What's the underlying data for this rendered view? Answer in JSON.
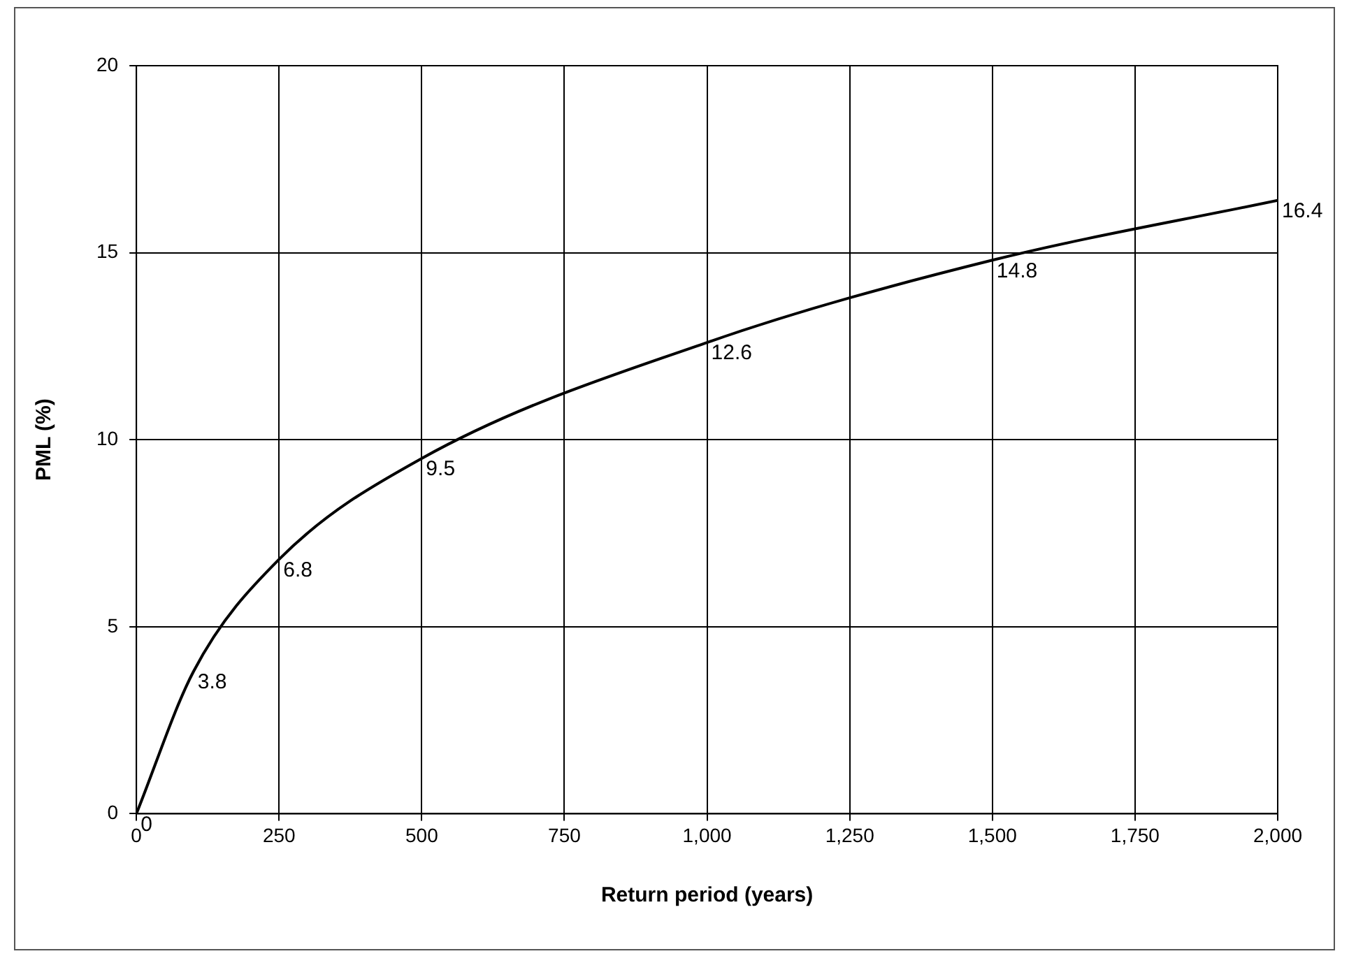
{
  "chart_data": {
    "type": "line",
    "xlabel": "Return period (years)",
    "ylabel": "PML (%)",
    "x": [
      0,
      100,
      250,
      500,
      1000,
      1500,
      2000
    ],
    "series": [
      {
        "color": "#000000",
        "values": [
          0,
          3.8,
          6.8,
          9.5,
          12.6,
          14.8,
          16.4
        ]
      }
    ],
    "xlim": [
      0,
      2000
    ],
    "xticks": [
      0,
      250,
      500,
      750,
      {
        "value": 1000,
        "label": "1,000"
      },
      {
        "value": 1250,
        "label": "1,250"
      },
      {
        "value": 1500,
        "label": "1,500"
      },
      {
        "value": 1750,
        "label": "1,750"
      },
      {
        "value": 2000,
        "label": "2,000"
      }
    ],
    "ylim": [
      0,
      20
    ],
    "yticks": [
      0,
      5,
      10,
      15,
      20
    ],
    "grid": true,
    "legend": false,
    "marker": "none",
    "line_style": "solid",
    "data_labels": true
  }
}
